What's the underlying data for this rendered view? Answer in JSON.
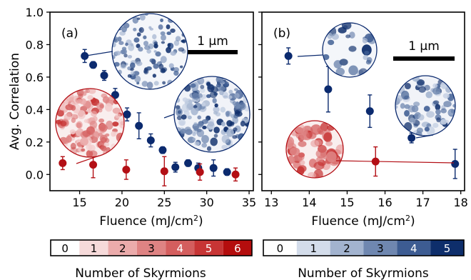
{
  "chart_data": [
    {
      "type": "scatter",
      "panel_label": "(a)",
      "xlabel": "Fluence (mJ/cm",
      "xlabel_sup": "2",
      "xlabel_close": ")",
      "ylabel": "Avg. Correlation",
      "xlim": [
        11.5,
        35.5
      ],
      "ylim": [
        -0.1,
        1.0
      ],
      "xticks": [
        15,
        20,
        25,
        30,
        35
      ],
      "yticks": [
        0.0,
        0.2,
        0.4,
        0.6,
        0.8,
        1.0
      ],
      "scale_bar": "1 μm",
      "series": [
        {
          "color": "#0b2a6e",
          "points": [
            {
              "x": 15.6,
              "y": 0.73,
              "err": 0.04
            },
            {
              "x": 16.6,
              "y": 0.675,
              "err": 0.02
            },
            {
              "x": 17.9,
              "y": 0.61,
              "err": 0.03
            },
            {
              "x": 19.2,
              "y": 0.49,
              "err": 0.04
            },
            {
              "x": 20.6,
              "y": 0.37,
              "err": 0.04
            },
            {
              "x": 22.0,
              "y": 0.3,
              "err": 0.08
            },
            {
              "x": 23.4,
              "y": 0.21,
              "err": 0.04
            },
            {
              "x": 24.8,
              "y": 0.15,
              "err": 0.02
            },
            {
              "x": 26.3,
              "y": 0.045,
              "err": 0.03
            },
            {
              "x": 27.8,
              "y": 0.07,
              "err": 0.02
            },
            {
              "x": 29.0,
              "y": 0.04,
              "err": 0.03
            },
            {
              "x": 30.8,
              "y": 0.04,
              "err": 0.05
            },
            {
              "x": 32.4,
              "y": 0.015,
              "err": 0.02
            }
          ]
        },
        {
          "color": "#b30f15",
          "points": [
            {
              "x": 13.0,
              "y": 0.07,
              "err": 0.04
            },
            {
              "x": 16.6,
              "y": 0.06,
              "err": 0.08
            },
            {
              "x": 20.5,
              "y": 0.03,
              "err": 0.06
            },
            {
              "x": 25.0,
              "y": 0.02,
              "err": 0.09
            },
            {
              "x": 29.2,
              "y": 0.015,
              "err": 0.05
            },
            {
              "x": 33.4,
              "y": 0.0,
              "err": 0.04
            }
          ]
        }
      ]
    },
    {
      "type": "scatter",
      "panel_label": "(b)",
      "xlabel": "Fluence (mJ/cm",
      "xlabel_sup": "2",
      "xlabel_close": ")",
      "xlim": [
        12.75,
        18.1
      ],
      "ylim": [
        -0.1,
        1.0
      ],
      "xticks": [
        13,
        14,
        15,
        16,
        17,
        18
      ],
      "scale_bar": "1 μm",
      "series": [
        {
          "color": "#0b2a6e",
          "points": [
            {
              "x": 13.45,
              "y": 0.73,
              "err": 0.05
            },
            {
              "x": 14.5,
              "y": 0.525,
              "err": 0.14
            },
            {
              "x": 15.6,
              "y": 0.39,
              "err": 0.1
            },
            {
              "x": 16.7,
              "y": 0.225,
              "err": 0.03
            },
            {
              "x": 17.85,
              "y": 0.065,
              "err": 0.09
            }
          ]
        },
        {
          "color": "#b30f15",
          "points": [
            {
              "x": 15.75,
              "y": 0.08,
              "err": 0.09
            }
          ]
        }
      ]
    }
  ],
  "colorbars": [
    {
      "label": "Number of Skyrmions",
      "ticks": [
        "0",
        "1",
        "2",
        "3",
        "4",
        "5",
        "6"
      ],
      "colors": [
        "#ffffff",
        "#f6dada",
        "#ebabab",
        "#df8383",
        "#d45e5e",
        "#c73535",
        "#b40d0d"
      ],
      "text_colors": [
        "#000000",
        "#000000",
        "#000000",
        "#000000",
        "#ffffff",
        "#ffffff",
        "#ffffff"
      ]
    },
    {
      "label": "Number of Skyrmions",
      "ticks": [
        "0",
        "1",
        "2",
        "3",
        "4",
        "5"
      ],
      "colors": [
        "#ffffff",
        "#d3dcea",
        "#a2b3cf",
        "#6f87b0",
        "#3d5c92",
        "#0e2e6b"
      ],
      "text_colors": [
        "#000000",
        "#000000",
        "#000000",
        "#000000",
        "#ffffff",
        "#ffffff"
      ]
    }
  ]
}
